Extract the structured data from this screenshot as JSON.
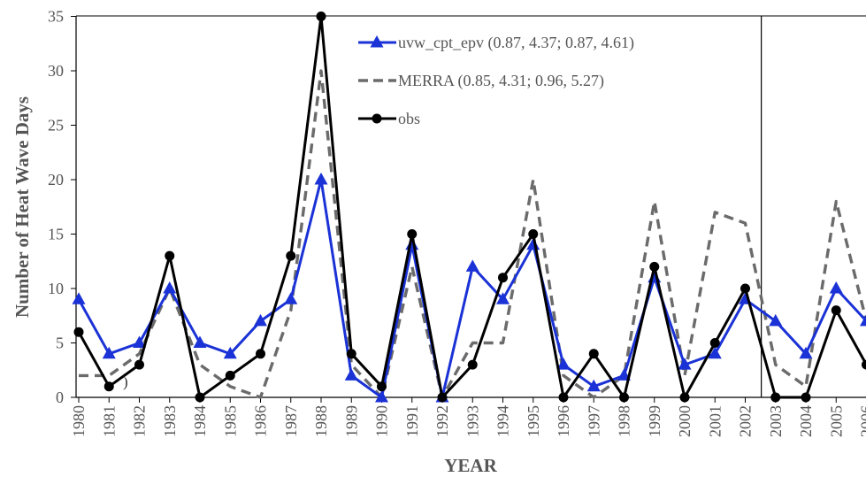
{
  "chart_data": {
    "type": "line",
    "title": "",
    "xlabel": "YEAR",
    "ylabel": "Number of Heat Wave Days",
    "ylim": [
      0,
      35
    ],
    "yticks": [
      0,
      5,
      10,
      15,
      20,
      25,
      30,
      35
    ],
    "grid": false,
    "legend_position": "top-center",
    "stray_text": ")",
    "vertical_marker_between": [
      "2002",
      "2003"
    ],
    "x": [
      "1980",
      "1981",
      "1982",
      "1983",
      "1984",
      "1985",
      "1986",
      "1987",
      "1988",
      "1989",
      "1990",
      "1991",
      "1992",
      "1993",
      "1994",
      "1995",
      "1996",
      "1997",
      "1998",
      "1999",
      "2000",
      "2001",
      "2002",
      "2003",
      "2004",
      "2005",
      "2006"
    ],
    "series": [
      {
        "name": "uvw_cpt_epv (0.87, 4.37; 0.87, 4.61)",
        "color": "#1a32d6",
        "style": "solid",
        "marker": "triangle",
        "values": [
          9,
          4,
          5,
          10,
          5,
          4,
          7,
          9,
          20,
          2,
          0,
          14,
          0,
          12,
          9,
          14,
          3,
          1,
          2,
          11,
          3,
          4,
          9,
          7,
          4,
          10,
          7
        ]
      },
      {
        "name": "MERRA (0.85, 4.31; 0.96, 5.27)",
        "color": "#6b6b6b",
        "style": "dashed",
        "marker": "none",
        "values": [
          2,
          2,
          4,
          10,
          3,
          1,
          0,
          8,
          30,
          3,
          0,
          12,
          0,
          5,
          5,
          20,
          2,
          0,
          2,
          18,
          2,
          17,
          16,
          3,
          1,
          18,
          7
        ]
      },
      {
        "name": "obs",
        "color": "#000000",
        "style": "solid",
        "marker": "circle",
        "values": [
          6,
          1,
          3,
          13,
          0,
          2,
          4,
          13,
          35,
          4,
          1,
          15,
          0,
          3,
          11,
          15,
          0,
          4,
          0,
          12,
          0,
          5,
          10,
          0,
          0,
          8,
          3
        ]
      }
    ]
  }
}
